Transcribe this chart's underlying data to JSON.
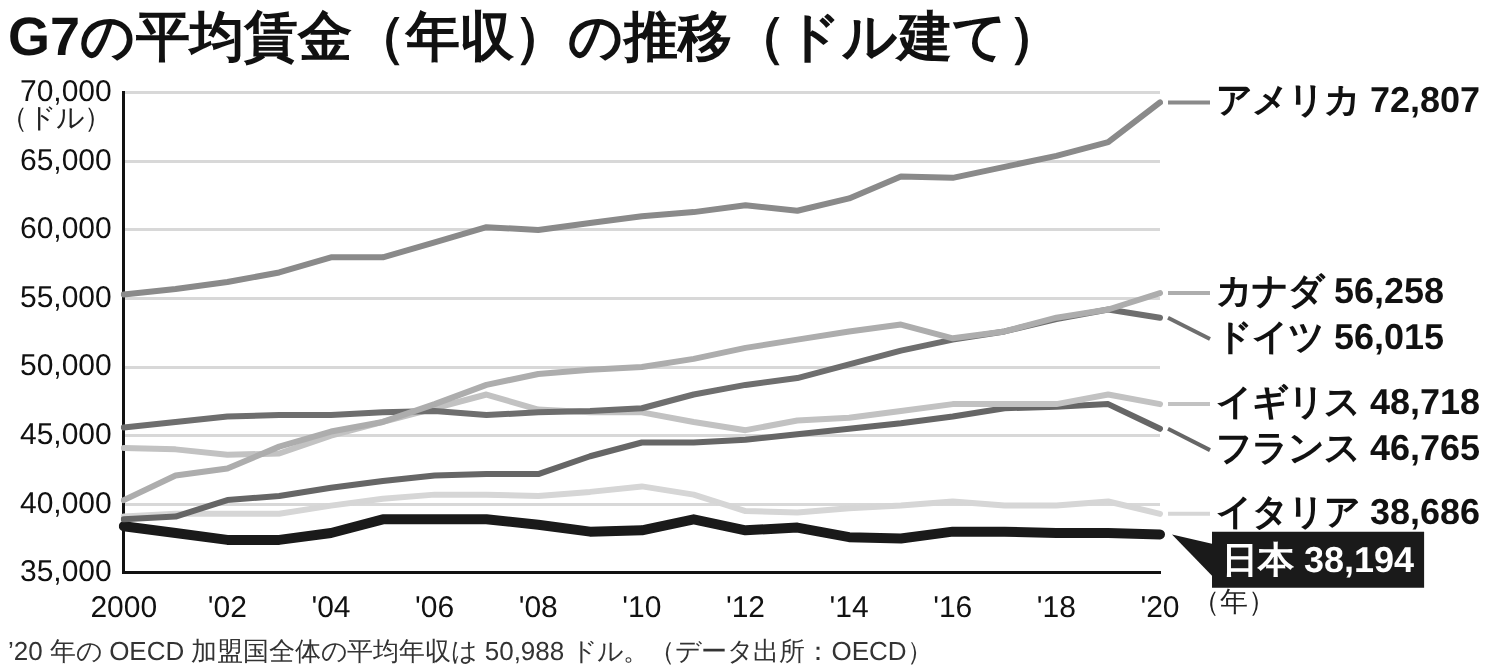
{
  "chart_data": {
    "type": "line",
    "title": "G7の平均賃金（年収）の推移（ドル建て）",
    "ylabel": "（ドル）",
    "xlabel": "（年）",
    "annotations": [
      "’20 年の OECD 加盟国全体の平均年収は 50,988 ドル。（データ出所：OECD）"
    ],
    "categories": [
      "2000",
      null,
      "'02",
      null,
      "'04",
      null,
      "'06",
      null,
      "'08",
      null,
      "'10",
      null,
      "'12",
      null,
      "'14",
      null,
      "'16",
      null,
      "'18",
      null,
      "'20"
    ],
    "ylim": [
      35000,
      70000
    ],
    "yticks": [
      {
        "value": 35000,
        "label": "35,000"
      },
      {
        "value": 40000,
        "label": "40,000"
      },
      {
        "value": 45000,
        "label": "45,000"
      },
      {
        "value": 50000,
        "label": "50,000"
      },
      {
        "value": 55000,
        "label": "55,000"
      },
      {
        "value": 60000,
        "label": "60,000"
      },
      {
        "value": 65000,
        "label": "65,000"
      },
      {
        "value": 70000,
        "label": "70,000"
      }
    ],
    "grid": "y",
    "legend": "right",
    "marker": "none",
    "line_style": "solid",
    "series": [
      {
        "name": "アメリカ 72,807",
        "color": "#8a8a8a",
        "values": [
          55300,
          55700,
          56200,
          56900,
          58000,
          58000,
          59100,
          60200,
          60000,
          60500,
          61000,
          61300,
          61800,
          61400,
          62300,
          63900,
          63800,
          64600,
          65400,
          66400,
          69300
        ]
      },
      {
        "name": "カナダ 56,258",
        "color": "#adadad",
        "values": [
          40300,
          42100,
          42600,
          44200,
          45300,
          46000,
          47300,
          48700,
          49500,
          49800,
          50000,
          50600,
          51400,
          52000,
          52600,
          53100,
          52100,
          52600,
          53600,
          54200,
          55400
        ]
      },
      {
        "name": "ドイツ 56,015",
        "color": "#6e6e6e",
        "values": [
          45600,
          46000,
          46400,
          46500,
          46500,
          46700,
          46800,
          46500,
          46700,
          46800,
          47000,
          48000,
          48700,
          49200,
          50200,
          51200,
          52000,
          52600,
          53500,
          54200,
          53600
        ]
      },
      {
        "name": "イギリス 48,718",
        "color": "#c2c2c2",
        "values": [
          44100,
          44000,
          43600,
          43700,
          45000,
          46000,
          47000,
          48000,
          46900,
          46700,
          46700,
          46000,
          45400,
          46100,
          46300,
          46800,
          47300,
          47300,
          47300,
          48000,
          47300
        ]
      },
      {
        "name": "フランス 46,765",
        "color": "#666666",
        "values": [
          38900,
          39100,
          40300,
          40600,
          41200,
          41700,
          42100,
          42200,
          42200,
          43500,
          44500,
          44500,
          44700,
          45100,
          45500,
          45900,
          46400,
          47000,
          47100,
          47300,
          45500
        ]
      },
      {
        "name": "イタリア 38,686",
        "color": "#d6d6d6",
        "values": [
          39100,
          39300,
          39300,
          39300,
          39900,
          40400,
          40700,
          40700,
          40600,
          40900,
          41300,
          40700,
          39500,
          39400,
          39700,
          39900,
          40200,
          39900,
          39900,
          40200,
          39300
        ]
      },
      {
        "name": "日本 38,194",
        "color": "#1a1a1a",
        "values": [
          38400,
          37900,
          37400,
          37400,
          37900,
          38900,
          38900,
          38900,
          38500,
          38000,
          38100,
          38900,
          38100,
          38300,
          37600,
          37500,
          38000,
          38000,
          37900,
          37900,
          37800
        ]
      }
    ]
  }
}
